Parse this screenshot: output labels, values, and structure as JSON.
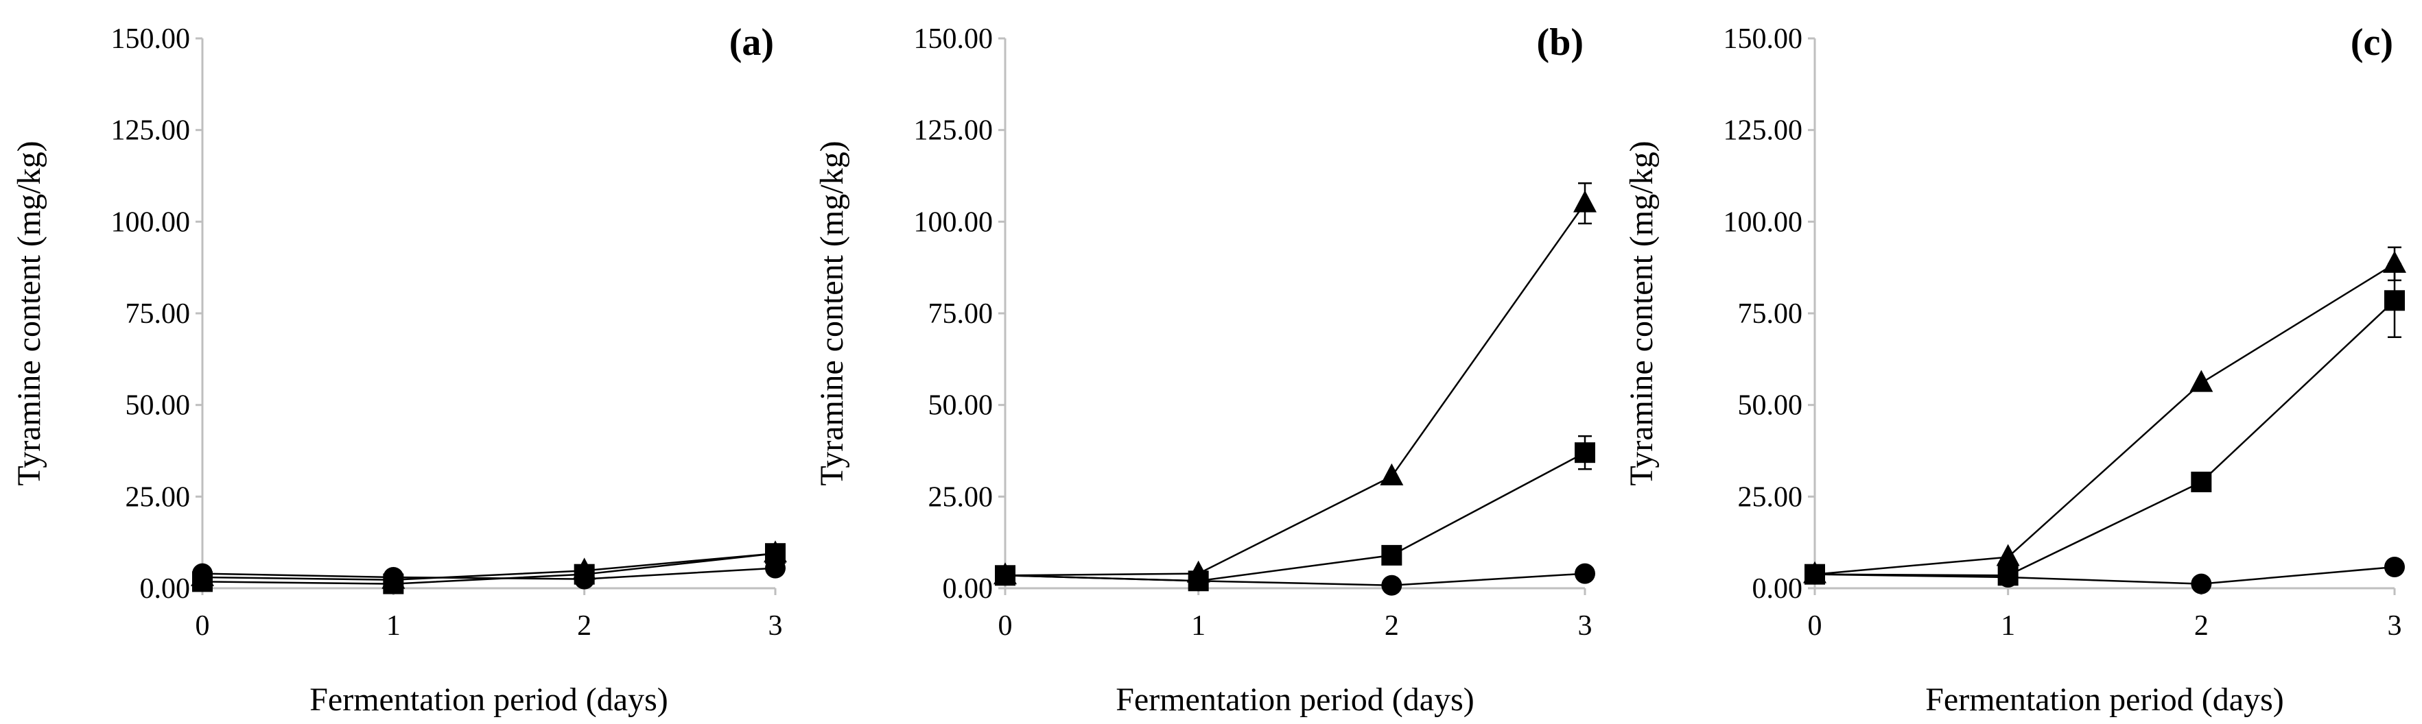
{
  "chart_data": [
    {
      "type": "line",
      "panel_label": "(a)",
      "xlabel": "Fermentation period (days)",
      "ylabel": "Tyramine content (mg/kg)",
      "x": [
        0,
        1,
        2,
        3
      ],
      "xlim": [
        0,
        3
      ],
      "ylim": [
        0,
        150
      ],
      "xticks": [
        "0",
        "1",
        "2",
        "3"
      ],
      "yticks": [
        "0.00",
        "25.00",
        "50.00",
        "75.00",
        "100.00",
        "125.00",
        "150.00"
      ],
      "grid": false,
      "series": [
        {
          "name": "circle",
          "marker": "circle",
          "values": [
            4.0,
            3.0,
            2.5,
            5.5
          ],
          "errors": [
            0,
            0,
            0,
            0
          ]
        },
        {
          "name": "square",
          "marker": "square",
          "values": [
            1.8,
            1.2,
            3.8,
            9.5
          ],
          "errors": [
            0,
            0,
            0,
            0
          ]
        },
        {
          "name": "triangle",
          "marker": "triangle",
          "values": [
            3.0,
            2.3,
            4.8,
            9.5
          ],
          "errors": [
            0,
            0,
            0,
            0
          ]
        }
      ]
    },
    {
      "type": "line",
      "panel_label": "(b)",
      "xlabel": "Fermentation period (days)",
      "ylabel": "Tyramine content (mg/kg)",
      "x": [
        0,
        1,
        2,
        3
      ],
      "xlim": [
        0,
        3
      ],
      "ylim": [
        0,
        150
      ],
      "xticks": [
        "0",
        "1",
        "2",
        "3"
      ],
      "yticks": [
        "0.00",
        "25.00",
        "50.00",
        "75.00",
        "100.00",
        "125.00",
        "150.00"
      ],
      "grid": false,
      "series": [
        {
          "name": "circle",
          "marker": "circle",
          "values": [
            3.5,
            2.0,
            0.8,
            4.0
          ],
          "errors": [
            0,
            0,
            0,
            0
          ]
        },
        {
          "name": "square",
          "marker": "square",
          "values": [
            3.5,
            2.0,
            9.0,
            37.0
          ],
          "errors": [
            0,
            0,
            0,
            4.5
          ]
        },
        {
          "name": "triangle",
          "marker": "triangle",
          "values": [
            3.5,
            4.0,
            30.5,
            105.0
          ],
          "errors": [
            0,
            0,
            0,
            5.5
          ]
        }
      ]
    },
    {
      "type": "line",
      "panel_label": "(c)",
      "xlabel": "Fermentation period (days)",
      "ylabel": "Tyramine content (mg/kg)",
      "x": [
        0,
        1,
        2,
        3
      ],
      "xlim": [
        0,
        3
      ],
      "ylim": [
        0,
        150
      ],
      "xticks": [
        "0",
        "1",
        "2",
        "3"
      ],
      "yticks": [
        "0.00",
        "25.00",
        "50.00",
        "75.00",
        "100.00",
        "125.00",
        "150.00"
      ],
      "grid": false,
      "series": [
        {
          "name": "circle",
          "marker": "circle",
          "values": [
            3.8,
            3.0,
            1.2,
            5.8
          ],
          "errors": [
            0,
            0,
            0,
            0
          ]
        },
        {
          "name": "square",
          "marker": "square",
          "values": [
            3.8,
            3.5,
            29.0,
            78.5
          ],
          "errors": [
            0,
            0,
            0,
            10.0
          ]
        },
        {
          "name": "triangle",
          "marker": "triangle",
          "values": [
            3.8,
            8.5,
            56.0,
            88.5
          ],
          "errors": [
            0,
            0,
            0,
            4.5
          ]
        }
      ]
    }
  ]
}
